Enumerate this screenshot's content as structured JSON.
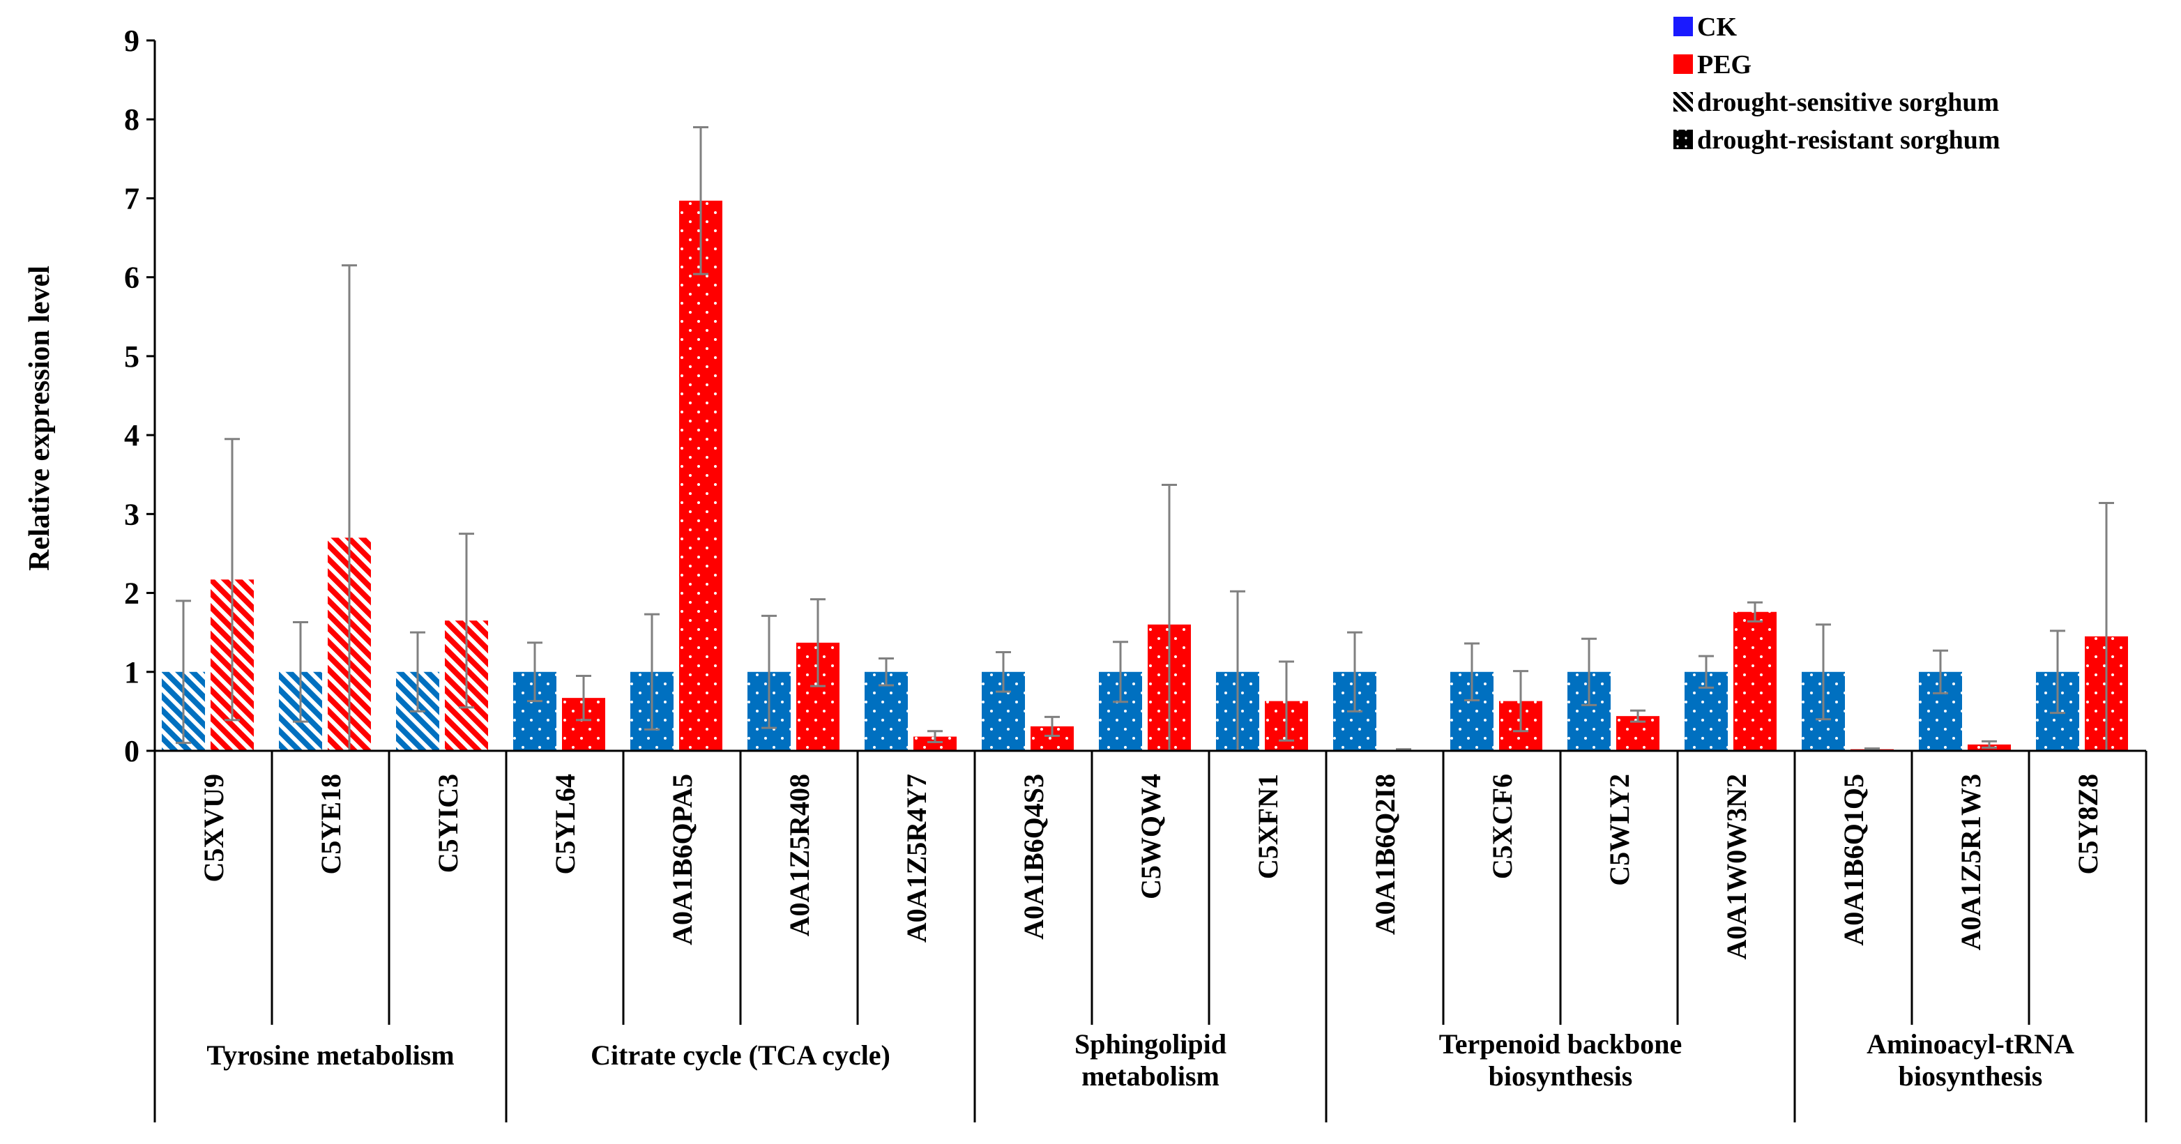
{
  "chart_data": {
    "type": "bar",
    "ylabel": "Relative expression level",
    "xlabel": "",
    "ylim": [
      0,
      9
    ],
    "yticks": [
      "0",
      "1",
      "2",
      "3",
      "4",
      "5",
      "6",
      "7",
      "8",
      "9"
    ],
    "legend": {
      "placement": "top-right",
      "items": [
        {
          "label": "CK",
          "swatch": "solid",
          "color": "#1a1aff"
        },
        {
          "label": "PEG",
          "swatch": "solid",
          "color": "#ff0000"
        },
        {
          "label": "drought-sensitive sorghum",
          "swatch": "hatch",
          "color": "#000000"
        },
        {
          "label": "drought-resistant sorghum",
          "swatch": "dots",
          "color": "#000000"
        }
      ]
    },
    "colors": {
      "CK": "#0070c0",
      "PEG": "#ff0000",
      "error_bar": "#808080"
    },
    "series": [
      {
        "name": "CK",
        "values": [
          1,
          1,
          1,
          1,
          1,
          1,
          1,
          1,
          1,
          1,
          1,
          1,
          1,
          1,
          1,
          1,
          1
        ],
        "errors": [
          0.9,
          0.63,
          0.5,
          0.37,
          0.73,
          0.71,
          0.17,
          0.25,
          0.38,
          1.02,
          0.5,
          0.36,
          0.42,
          0.2,
          0.6,
          0.27,
          0.52
        ]
      },
      {
        "name": "PEG",
        "values": [
          2.17,
          2.7,
          1.65,
          0.67,
          6.97,
          1.37,
          0.18,
          0.31,
          1.6,
          0.63,
          0.01,
          0.63,
          0.44,
          1.76,
          0.02,
          0.08,
          1.45
        ],
        "errors": [
          1.78,
          3.45,
          1.1,
          0.28,
          0.93,
          0.55,
          0.07,
          0.12,
          1.77,
          0.5,
          0.01,
          0.38,
          0.07,
          0.12,
          0.01,
          0.04,
          1.69
        ]
      }
    ],
    "categories": [
      "C5XVU9",
      "C5YE18",
      "C5YIC3",
      "C5YL64",
      "A0A1B6QPA5",
      "A0A1Z5R408",
      "A0A1Z5R4Y7",
      "A0A1B6Q4S3",
      "C5WQW4",
      "C5XFN1",
      "A0A1B6Q2I8",
      "C5XCF6",
      "C5WLY2",
      "A0A1W0W3N2",
      "A0A1B6Q1Q5",
      "A0A1Z5R1W3",
      "C5Y8Z8"
    ],
    "pattern_by_category": [
      "hatch",
      "hatch",
      "hatch",
      "dots",
      "dots",
      "dots",
      "dots",
      "dots",
      "dots",
      "dots",
      "dots",
      "dots",
      "dots",
      "dots",
      "dots",
      "dots",
      "dots"
    ],
    "groups": [
      {
        "lines": [
          "Tyrosine metabolism"
        ],
        "count": 3
      },
      {
        "lines": [
          "Citrate cycle (TCA cycle)"
        ],
        "count": 4
      },
      {
        "lines": [
          "Sphingolipid",
          "metabolism"
        ],
        "count": 3
      },
      {
        "lines": [
          "Terpenoid backbone",
          "biosynthesis"
        ],
        "count": 4
      },
      {
        "lines": [
          "Aminoacyl-tRNA",
          "biosynthesis"
        ],
        "count": 3
      }
    ]
  }
}
